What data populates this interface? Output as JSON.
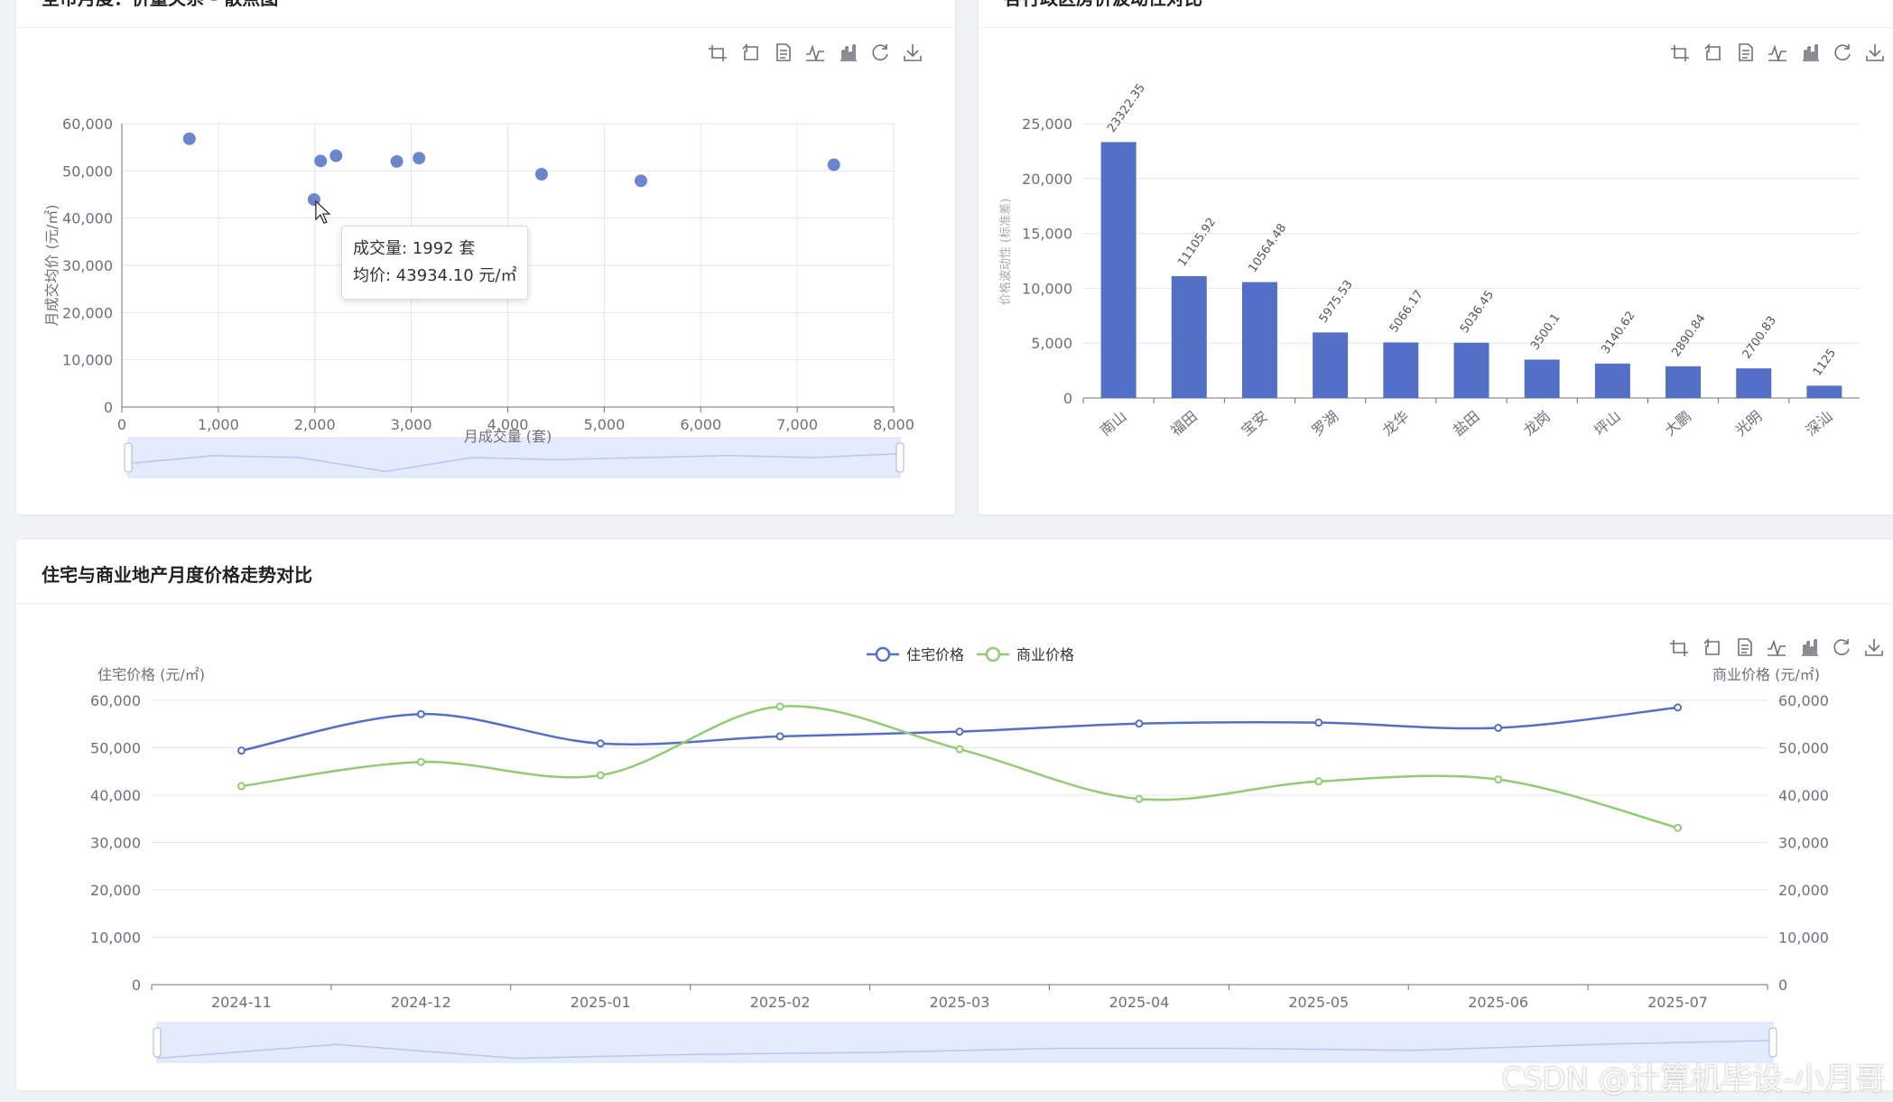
{
  "toolbox_icons": [
    "crop-icon",
    "undo-icon",
    "data-view-icon",
    "line-chart-icon",
    "bar-chart-icon",
    "refresh-icon",
    "download-icon"
  ],
  "colors": {
    "blue": "#5470c6",
    "green": "#91cc75",
    "axis": "#6e7079",
    "grid": "#e0e6f1",
    "zoom_fill": "#dce6fb"
  },
  "scatter_card": {
    "title": "全市月度：价量关系 - 散点图",
    "tooltip": {
      "line1": "成交量: 1992 套",
      "line2": "均价: 43934.10 元/㎡"
    }
  },
  "bar_card": {
    "title": "各行政区房价波动性对比"
  },
  "line_card": {
    "title": "住宅与商业地产月度价格走势对比"
  },
  "watermark": "CSDN @计算机毕设-小月哥",
  "chart_data": [
    {
      "type": "scatter",
      "xlabel": "月成交量 (套)",
      "ylabel": "月成交均价 (元/㎡)",
      "xlim": [
        0,
        8000
      ],
      "ylim": [
        0,
        60000
      ],
      "xticks": [
        "0",
        "1,000",
        "2,000",
        "3,000",
        "4,000",
        "5,000",
        "6,000",
        "7,000",
        "8,000"
      ],
      "yticks": [
        "0",
        "10,000",
        "20,000",
        "30,000",
        "40,000",
        "50,000",
        "60,000"
      ],
      "points": [
        [
          700,
          56800
        ],
        [
          1992,
          43934.1
        ],
        [
          2060,
          52100
        ],
        [
          2220,
          53200
        ],
        [
          2850,
          52000
        ],
        [
          3080,
          52700
        ],
        [
          4350,
          49300
        ],
        [
          5380,
          47900
        ],
        [
          7380,
          51300
        ]
      ],
      "grid": true
    },
    {
      "type": "bar",
      "ylabel": "价格波动性 (标准差)",
      "ylim": [
        0,
        25000
      ],
      "yticks": [
        "0",
        "5,000",
        "10,000",
        "15,000",
        "20,000",
        "25,000"
      ],
      "categories": [
        "南山",
        "福田",
        "宝安",
        "罗湖",
        "龙华",
        "盐田",
        "龙岗",
        "坪山",
        "大鹏",
        "光明",
        "深汕"
      ],
      "values": [
        23322.35,
        11105.92,
        10564.48,
        5975.53,
        5066.17,
        5036.45,
        3500.1,
        3140.62,
        2890.84,
        2700.83,
        1125
      ],
      "labels": [
        "23322.35",
        "11105.92",
        "10564.48",
        "5975.53",
        "5066.17",
        "5036.45",
        "3500.1",
        "3140.62",
        "2890.84",
        "2700.83",
        "1125"
      ]
    },
    {
      "type": "line",
      "categories": [
        "2024-11",
        "2024-12",
        "2025-01",
        "2025-02",
        "2025-03",
        "2025-04",
        "2025-05",
        "2025-06",
        "2025-07"
      ],
      "ylabel_left": "住宅价格 (元/㎡)",
      "ylabel_right": "商业价格 (元/㎡)",
      "ylim": [
        0,
        60000
      ],
      "yticks": [
        "0",
        "10,000",
        "20,000",
        "30,000",
        "40,000",
        "50,000",
        "60,000"
      ],
      "legend_position": "top-center",
      "series": [
        {
          "name": "住宅价格",
          "color": "#5470c6",
          "values": [
            49400,
            57100,
            50900,
            52400,
            53400,
            55100,
            55300,
            54200,
            58500
          ]
        },
        {
          "name": "商业价格",
          "color": "#91cc75",
          "values": [
            41900,
            47000,
            44200,
            58700,
            49700,
            39200,
            42900,
            43300,
            33100
          ]
        }
      ]
    }
  ]
}
